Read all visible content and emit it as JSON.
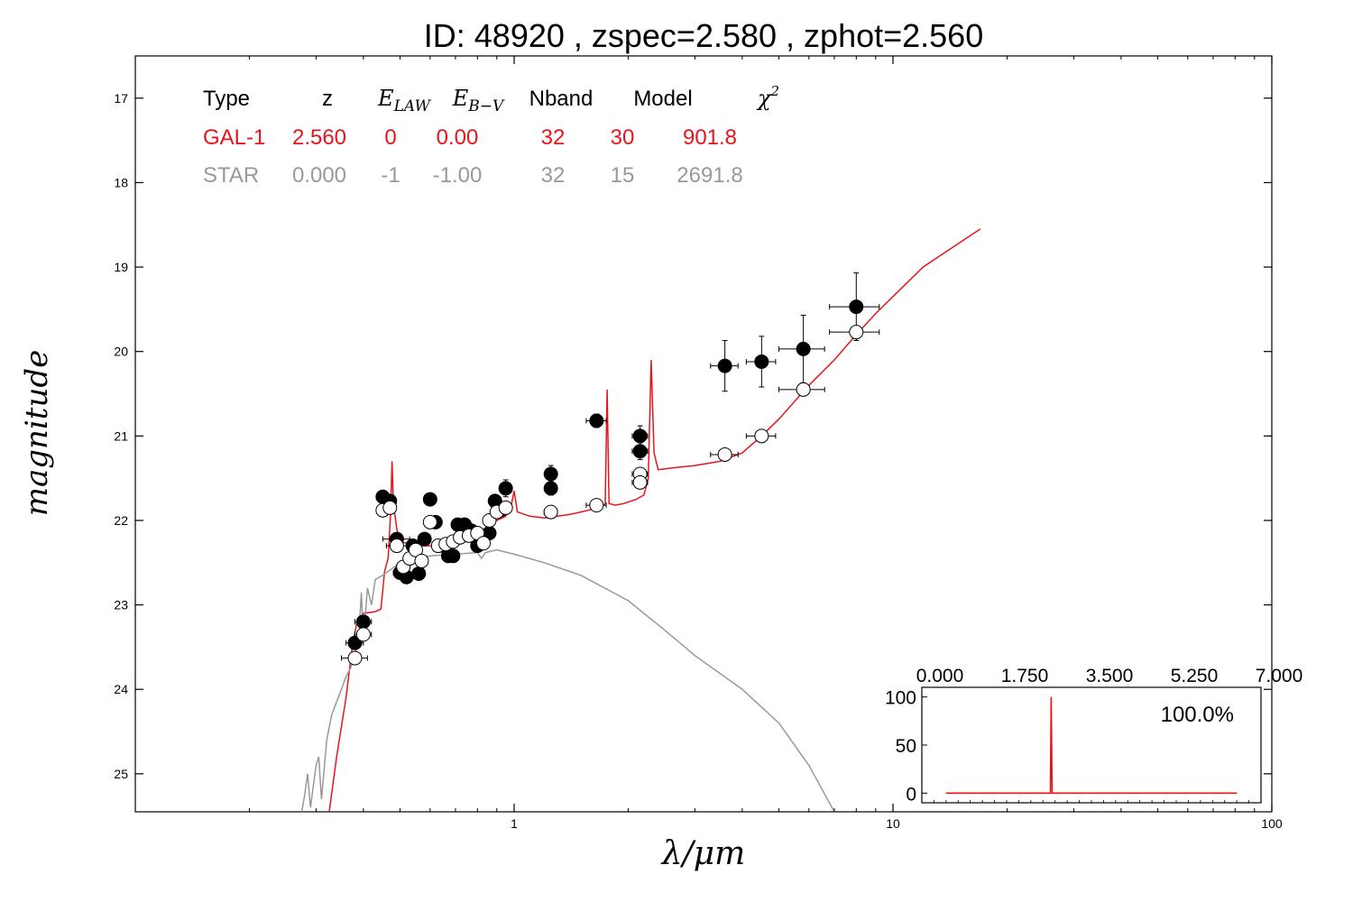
{
  "chart_data": {
    "type": "scatter",
    "title": "ID:  48920 , zspec=2.580 , zphot=2.560",
    "xlabel": "λ/μm",
    "ylabel": "magnitude",
    "xscale": "log",
    "xlim": [
      0.1,
      100
    ],
    "ylim": [
      25.45,
      16.5
    ],
    "x_ticks": [
      1,
      10,
      100
    ],
    "x_tick_labels": [
      "1",
      "10",
      "100"
    ],
    "y_ticks": [
      17,
      18,
      19,
      20,
      21,
      22,
      23,
      24,
      25
    ],
    "y_tick_labels": [
      "17",
      "18",
      "19",
      "20",
      "21",
      "22",
      "23",
      "24",
      "25"
    ],
    "grid": false,
    "fit_table": {
      "headers": [
        "Type",
        "z",
        "E_LAW",
        "E_B−V",
        "Nband",
        "Model",
        "χ²"
      ],
      "rows": [
        {
          "name": "GAL-1",
          "color": "#e8141c",
          "values": [
            "GAL-1",
            "2.560",
            "0",
            "0.00",
            "32",
            "30",
            "901.8"
          ]
        },
        {
          "name": "STAR",
          "color": "#999999",
          "values": [
            "STAR",
            "0.000",
            "-1",
            "-1.00",
            "32",
            "15",
            "2691.8"
          ]
        }
      ]
    },
    "series": [
      {
        "kind": "line",
        "color": "#e8141c",
        "points": [
          [
            0.325,
            25.45
          ],
          [
            0.34,
            24.8
          ],
          [
            0.36,
            24.1
          ],
          [
            0.375,
            23.45
          ],
          [
            0.385,
            23.2
          ],
          [
            0.4,
            23.1
          ],
          [
            0.43,
            23.08
          ],
          [
            0.445,
            23.05
          ],
          [
            0.455,
            22.6
          ],
          [
            0.465,
            22.45
          ],
          [
            0.472,
            21.9
          ],
          [
            0.476,
            21.3
          ],
          [
            0.48,
            21.8
          ],
          [
            0.49,
            22.1
          ],
          [
            0.5,
            22.25
          ],
          [
            0.55,
            22.3
          ],
          [
            0.6,
            22.3
          ],
          [
            0.65,
            22.28
          ],
          [
            0.7,
            22.25
          ],
          [
            0.75,
            22.22
          ],
          [
            0.8,
            22.18
          ],
          [
            0.85,
            22.1
          ],
          [
            0.9,
            22.0
          ],
          [
            0.95,
            21.95
          ],
          [
            0.98,
            21.85
          ],
          [
            1.0,
            21.65
          ],
          [
            1.02,
            21.9
          ],
          [
            1.1,
            21.95
          ],
          [
            1.2,
            21.97
          ],
          [
            1.3,
            21.95
          ],
          [
            1.4,
            21.93
          ],
          [
            1.5,
            21.9
          ],
          [
            1.6,
            21.87
          ],
          [
            1.7,
            21.85
          ],
          [
            1.74,
            21.8
          ],
          [
            1.76,
            20.45
          ],
          [
            1.78,
            21.8
          ],
          [
            1.85,
            21.82
          ],
          [
            1.95,
            21.8
          ],
          [
            2.1,
            21.75
          ],
          [
            2.2,
            21.7
          ],
          [
            2.26,
            21.5
          ],
          [
            2.3,
            20.1
          ],
          [
            2.34,
            21.2
          ],
          [
            2.4,
            21.4
          ],
          [
            2.6,
            21.38
          ],
          [
            3.0,
            21.35
          ],
          [
            3.5,
            21.3
          ],
          [
            4.0,
            21.2
          ],
          [
            4.5,
            21.0
          ],
          [
            5.0,
            20.8
          ],
          [
            6.0,
            20.4
          ],
          [
            7.0,
            20.1
          ],
          [
            8.0,
            19.8
          ],
          [
            9.0,
            19.55
          ],
          [
            10.0,
            19.35
          ],
          [
            12.0,
            19.0
          ],
          [
            14.0,
            18.8
          ],
          [
            17.0,
            18.55
          ]
        ]
      },
      {
        "kind": "line",
        "color": "#999999",
        "points": [
          [
            0.275,
            25.45
          ],
          [
            0.28,
            25.25
          ],
          [
            0.285,
            25.0
          ],
          [
            0.29,
            25.4
          ],
          [
            0.3,
            24.9
          ],
          [
            0.305,
            24.8
          ],
          [
            0.31,
            25.3
          ],
          [
            0.32,
            24.6
          ],
          [
            0.33,
            24.3
          ],
          [
            0.35,
            24.0
          ],
          [
            0.36,
            23.85
          ],
          [
            0.37,
            23.75
          ],
          [
            0.38,
            23.6
          ],
          [
            0.39,
            23.3
          ],
          [
            0.395,
            22.85
          ],
          [
            0.4,
            23.4
          ],
          [
            0.41,
            22.8
          ],
          [
            0.42,
            23.0
          ],
          [
            0.43,
            22.7
          ],
          [
            0.45,
            22.65
          ],
          [
            0.5,
            22.5
          ],
          [
            0.55,
            22.45
          ],
          [
            0.6,
            22.42
          ],
          [
            0.7,
            22.4
          ],
          [
            0.8,
            22.38
          ],
          [
            0.82,
            22.45
          ],
          [
            0.84,
            22.38
          ],
          [
            0.9,
            22.35
          ],
          [
            1.0,
            22.4
          ],
          [
            1.2,
            22.5
          ],
          [
            1.5,
            22.65
          ],
          [
            2.0,
            22.95
          ],
          [
            2.5,
            23.3
          ],
          [
            3.0,
            23.6
          ],
          [
            4.0,
            24.0
          ],
          [
            5.0,
            24.4
          ],
          [
            6.0,
            24.9
          ],
          [
            7.0,
            25.45
          ]
        ]
      },
      {
        "kind": "points",
        "fill": "#000000",
        "points": [
          {
            "x": 0.38,
            "y": 23.45,
            "xerr": 0.02,
            "yerr": 0.03
          },
          {
            "x": 0.4,
            "y": 23.2,
            "xerr": 0.02,
            "yerr": 0.03
          },
          {
            "x": 0.45,
            "y": 21.72,
            "xerr": 0.005,
            "yerr": 0.02
          },
          {
            "x": 0.47,
            "y": 21.77,
            "xerr": 0.01,
            "yerr": 0.02
          },
          {
            "x": 0.49,
            "y": 22.22,
            "xerr": 0.04,
            "yerr": 0.02
          },
          {
            "x": 0.5,
            "y": 22.62,
            "xerr": 0.02,
            "yerr": 0.02
          },
          {
            "x": 0.52,
            "y": 22.67,
            "xerr": 0.02,
            "yerr": 0.02
          },
          {
            "x": 0.54,
            "y": 22.3,
            "xerr": 0.02,
            "yerr": 0.02
          },
          {
            "x": 0.56,
            "y": 22.63,
            "xerr": 0.02,
            "yerr": 0.02
          },
          {
            "x": 0.58,
            "y": 22.22,
            "xerr": 0.02,
            "yerr": 0.02
          },
          {
            "x": 0.6,
            "y": 21.75,
            "xerr": 0.01,
            "yerr": 0.02
          },
          {
            "x": 0.62,
            "y": 22.02,
            "xerr": 0.02,
            "yerr": 0.02
          },
          {
            "x": 0.65,
            "y": 22.3,
            "xerr": 0.02,
            "yerr": 0.02
          },
          {
            "x": 0.67,
            "y": 22.42,
            "xerr": 0.02,
            "yerr": 0.02
          },
          {
            "x": 0.69,
            "y": 22.42,
            "xerr": 0.02,
            "yerr": 0.02
          },
          {
            "x": 0.71,
            "y": 22.05,
            "xerr": 0.02,
            "yerr": 0.02
          },
          {
            "x": 0.74,
            "y": 22.05,
            "xerr": 0.02,
            "yerr": 0.02
          },
          {
            "x": 0.77,
            "y": 22.12,
            "xerr": 0.02,
            "yerr": 0.02
          },
          {
            "x": 0.8,
            "y": 22.3,
            "xerr": 0.02,
            "yerr": 0.02
          },
          {
            "x": 0.83,
            "y": 22.2,
            "xerr": 0.02,
            "yerr": 0.02
          },
          {
            "x": 0.86,
            "y": 22.15,
            "xerr": 0.02,
            "yerr": 0.02
          },
          {
            "x": 0.89,
            "y": 21.77,
            "xerr": 0.02,
            "yerr": 0.02
          },
          {
            "x": 0.92,
            "y": 21.88,
            "xerr": 0.02,
            "yerr": 0.02
          },
          {
            "x": 0.95,
            "y": 21.62,
            "xerr": 0.02,
            "yerr": 0.1
          },
          {
            "x": 1.25,
            "y": 21.45,
            "xerr": 0.03,
            "yerr": 0.1
          },
          {
            "x": 1.25,
            "y": 21.62,
            "xerr": 0.03,
            "yerr": 0.08
          },
          {
            "x": 1.65,
            "y": 20.82,
            "xerr": 0.1,
            "yerr": 0.08
          },
          {
            "x": 2.15,
            "y": 21.0,
            "xerr": 0.1,
            "yerr": 0.12
          },
          {
            "x": 2.15,
            "y": 21.18,
            "xerr": 0.1,
            "yerr": 0.1
          },
          {
            "x": 3.6,
            "y": 20.17,
            "xerr": 0.3,
            "yerr": 0.3
          },
          {
            "x": 4.5,
            "y": 20.12,
            "xerr": 0.4,
            "yerr": 0.3
          },
          {
            "x": 5.8,
            "y": 19.97,
            "xerr": 0.8,
            "yerr": 0.4
          },
          {
            "x": 8.0,
            "y": 19.47,
            "xerr": 1.2,
            "yerr": 0.4
          }
        ]
      },
      {
        "kind": "points",
        "fill": "#ffffff",
        "points": [
          {
            "x": 0.38,
            "y": 23.63,
            "xerr": 0.03
          },
          {
            "x": 0.4,
            "y": 23.35,
            "xerr": 0.02
          },
          {
            "x": 0.45,
            "y": 21.88,
            "xerr": 0.01
          },
          {
            "x": 0.47,
            "y": 21.85,
            "xerr": 0.01
          },
          {
            "x": 0.49,
            "y": 22.3,
            "xerr": 0.03
          },
          {
            "x": 0.51,
            "y": 22.55,
            "xerr": 0.02
          },
          {
            "x": 0.53,
            "y": 22.45,
            "xerr": 0.02
          },
          {
            "x": 0.55,
            "y": 22.35,
            "xerr": 0.02
          },
          {
            "x": 0.57,
            "y": 22.48,
            "xerr": 0.02
          },
          {
            "x": 0.6,
            "y": 22.02,
            "xerr": 0.02
          },
          {
            "x": 0.63,
            "y": 22.3,
            "xerr": 0.02
          },
          {
            "x": 0.66,
            "y": 22.28,
            "xerr": 0.02
          },
          {
            "x": 0.69,
            "y": 22.25,
            "xerr": 0.02
          },
          {
            "x": 0.72,
            "y": 22.2,
            "xerr": 0.02
          },
          {
            "x": 0.76,
            "y": 22.18,
            "xerr": 0.02
          },
          {
            "x": 0.8,
            "y": 22.15,
            "xerr": 0.02
          },
          {
            "x": 0.83,
            "y": 22.27,
            "xerr": 0.02
          },
          {
            "x": 0.86,
            "y": 22.0,
            "xerr": 0.02
          },
          {
            "x": 0.9,
            "y": 21.9,
            "xerr": 0.02
          },
          {
            "x": 0.95,
            "y": 21.85,
            "xerr": 0.02
          },
          {
            "x": 1.25,
            "y": 21.9,
            "xerr": 0.05
          },
          {
            "x": 1.65,
            "y": 21.82,
            "xerr": 0.1
          },
          {
            "x": 2.15,
            "y": 21.45,
            "xerr": 0.1
          },
          {
            "x": 2.15,
            "y": 21.55,
            "xerr": 0.1
          },
          {
            "x": 3.6,
            "y": 21.22,
            "xerr": 0.3
          },
          {
            "x": 4.5,
            "y": 21.0,
            "xerr": 0.4
          },
          {
            "x": 5.8,
            "y": 20.45,
            "xerr": 0.8
          },
          {
            "x": 8.0,
            "y": 19.77,
            "xerr": 1.2
          }
        ]
      }
    ],
    "inset": {
      "type": "line",
      "label": "100.0%",
      "xlim": [
        0,
        7
      ],
      "ylim": [
        -10,
        110
      ],
      "x_ticks": [
        0.0,
        1.75,
        3.5,
        5.25,
        7.0
      ],
      "x_tick_labels": [
        "0.000",
        "1.750",
        "3.500",
        "5.250",
        "7.000"
      ],
      "y_ticks": [
        0,
        50,
        100
      ],
      "y_tick_labels": [
        "0",
        "50",
        "100"
      ],
      "color": "#e8141c",
      "points": [
        [
          0.1,
          0
        ],
        [
          2.54,
          0
        ],
        [
          2.56,
          100
        ],
        [
          2.58,
          0
        ],
        [
          6.9,
          0
        ]
      ]
    }
  }
}
